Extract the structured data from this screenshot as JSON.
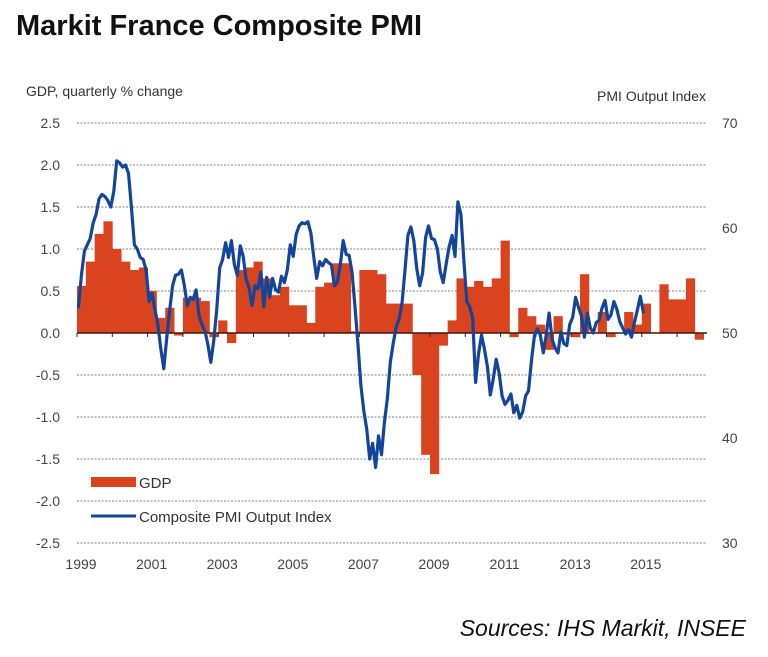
{
  "chart_data": {
    "type": "bar+line",
    "title": "Markit France Composite PMI",
    "source": "Sources: IHS Markit, INSEE",
    "ylabel_left": "GDP, quarterly % change",
    "ylabel_right": "PMI Output Index",
    "ylim_left": [
      -2.5,
      2.5
    ],
    "ylim_right": [
      30,
      70
    ],
    "yticks_left": [
      "2.5",
      "2.0",
      "1.5",
      "1.0",
      "0.5",
      "0.0",
      "-0.5",
      "-1.0",
      "-1.5",
      "-2.0",
      "-2.5"
    ],
    "yticks_right": [
      "70",
      "60",
      "50",
      "40",
      "30"
    ],
    "xticks": [
      "1999",
      "2001",
      "2003",
      "2005",
      "2007",
      "2009",
      "2011",
      "2013",
      "2015"
    ],
    "x_range": [
      1999,
      2016.75
    ],
    "grid": true,
    "legend_position": "bottom-left",
    "colors": {
      "gdp": "#d9431e",
      "pmi": "#13459a",
      "grid": "#999999",
      "zero": "#3a1a10"
    },
    "series": [
      {
        "name": "GDP",
        "kind": "bar",
        "axis": "left",
        "start": "1999Q1",
        "frequency": "quarterly",
        "values": [
          0.56,
          0.85,
          1.18,
          1.33,
          1.0,
          0.85,
          0.75,
          0.78,
          0.5,
          0.18,
          0.3,
          -0.03,
          0.42,
          0.42,
          0.38,
          -0.05,
          0.15,
          -0.12,
          0.75,
          0.78,
          0.85,
          0.65,
          0.45,
          0.55,
          0.33,
          0.33,
          0.12,
          0.55,
          0.6,
          0.83,
          0.83,
          0.02,
          0.75,
          0.75,
          0.7,
          0.35,
          0.35,
          0.35,
          -0.5,
          -1.45,
          -1.68,
          -0.15,
          0.15,
          0.65,
          0.55,
          0.62,
          0.55,
          0.65,
          1.1,
          -0.05,
          0.3,
          0.2,
          0.1,
          -0.2,
          0.2,
          -0.02,
          -0.05,
          0.7,
          0.0,
          0.25,
          -0.05,
          0.0,
          0.25,
          0.1,
          0.35,
          0.0,
          0.58,
          0.4,
          0.4,
          0.65,
          -0.08
        ]
      },
      {
        "name": "Composite PMI Output Index",
        "kind": "line",
        "axis": "right",
        "start": "1999-01",
        "frequency": "monthly",
        "values": [
          52.5,
          55.5,
          57.8,
          58.4,
          59.0,
          60.5,
          61.3,
          62.8,
          63.2,
          63.0,
          62.6,
          62.0,
          63.5,
          66.4,
          66.2,
          65.8,
          66.0,
          65.2,
          62.0,
          58.4,
          58.0,
          57.2,
          57.0,
          56.0,
          53.0,
          53.8,
          52.2,
          50.8,
          48.5,
          46.6,
          49.5,
          52.2,
          54.5,
          55.5,
          55.6,
          56.0,
          54.5,
          52.6,
          53.4,
          53.2,
          54.1,
          51.6,
          50.8,
          50.2,
          48.9,
          47.2,
          49.3,
          52.2,
          56.2,
          57.0,
          58.6,
          57.2,
          58.8,
          56.5,
          55.5,
          58.3,
          57.3,
          55.1,
          54.3,
          52.6,
          54.5,
          54.2,
          55.8,
          52.5,
          55.3,
          53.4,
          55.2,
          54.1,
          53.9,
          55.4,
          54.8,
          56.0,
          58.4,
          57.3,
          59.4,
          60.2,
          60.5,
          60.4,
          60.6,
          59.5,
          57.2,
          55.2,
          56.8,
          56.4,
          57.0,
          56.7,
          56.5,
          54.5,
          54.8,
          56.5,
          58.8,
          57.5,
          57.4,
          55.8,
          52.5,
          49.0,
          45.0,
          42.6,
          40.8,
          38.0,
          39.5,
          37.2,
          40.2,
          38.4,
          41.5,
          43.7,
          47.2,
          49.0,
          50.6,
          51.3,
          52.9,
          56.0,
          59.3,
          60.1,
          58.8,
          56.1,
          54.5,
          55.7,
          59.1,
          60.2,
          59.0,
          58.9,
          58.0,
          55.8,
          54.8,
          56.6,
          58.2,
          59.3,
          57.3,
          62.5,
          61.3,
          57.0,
          53.0,
          52.5,
          51.4,
          45.3,
          48.0,
          49.8,
          48.5,
          46.8,
          44.1,
          45.6,
          47.5,
          46.2,
          44.0,
          43.2,
          43.6,
          44.2,
          42.4,
          43.1,
          41.9,
          42.5,
          44.0,
          44.5,
          47.4,
          49.7,
          50.4,
          49.8,
          48.1,
          49.8,
          51.9,
          49.4,
          48.6,
          48.1,
          50.1,
          49.0,
          48.8,
          50.8,
          51.5,
          53.4,
          52.4,
          51.6,
          49.6,
          51.9,
          50.5,
          50.0,
          51.0,
          51.2,
          52.4,
          53.1,
          51.3,
          51.7,
          53.0,
          52.3,
          51.1,
          50.5,
          49.9,
          50.3,
          49.6,
          51.0,
          52.2,
          53.5,
          52.0
        ]
      }
    ]
  }
}
